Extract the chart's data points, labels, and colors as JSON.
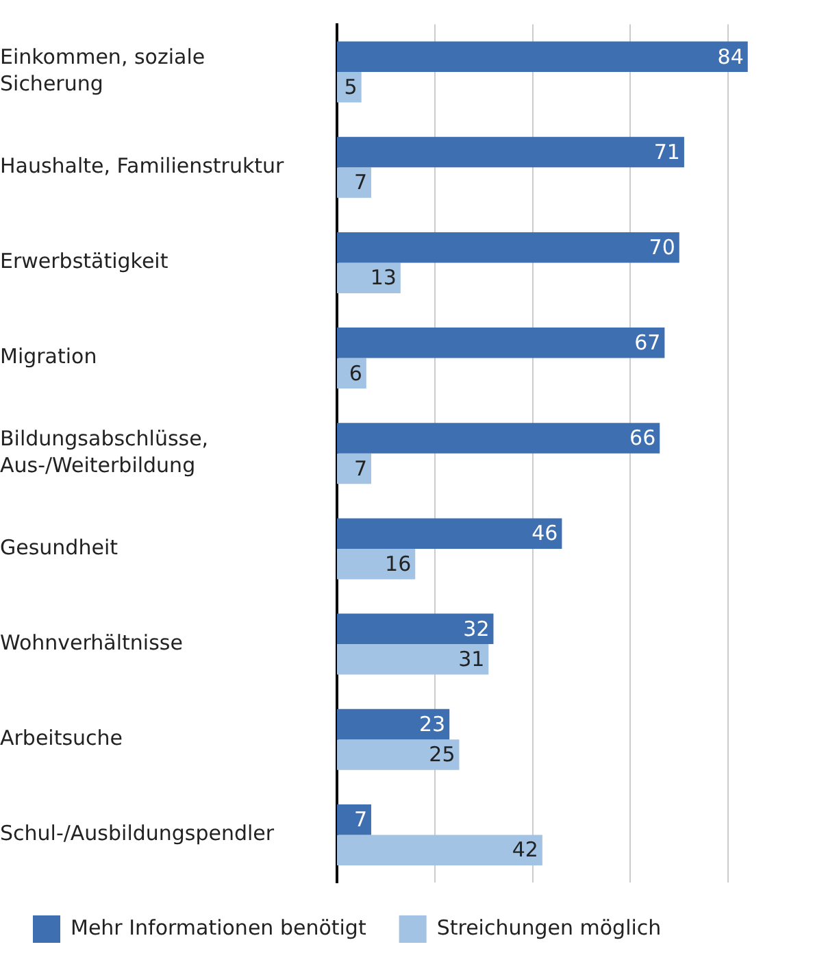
{
  "chart_data": {
    "type": "bar",
    "orientation": "horizontal",
    "categories": [
      "Einkommen, soziale Sicherung",
      "Haushalte, Familienstruktur",
      "Erwerbstätigkeit",
      "Migration",
      "Bildungsabschlüsse, Aus-/Weiterbildung",
      "Gesundheit",
      "Wohnverhältnisse",
      "Arbeitsuche",
      "Schul-/Ausbildungspendler"
    ],
    "series": [
      {
        "name": "Mehr Informationen benötigt",
        "color": "#3d6fb1",
        "values": [
          84,
          71,
          70,
          67,
          66,
          46,
          32,
          23,
          7
        ]
      },
      {
        "name": "Streichungen möglich",
        "color": "#a3c3e4",
        "values": [
          5,
          7,
          13,
          6,
          7,
          16,
          31,
          25,
          42
        ]
      }
    ],
    "xticks": [
      {
        "value": 20,
        "label": null
      },
      {
        "value": 40,
        "label": null
      },
      {
        "value": 60,
        "label": null
      },
      {
        "value": 80,
        "label": null
      }
    ],
    "tick_labels": "y",
    "grid": "x",
    "legend": "bottom left",
    "data_labels": true
  }
}
